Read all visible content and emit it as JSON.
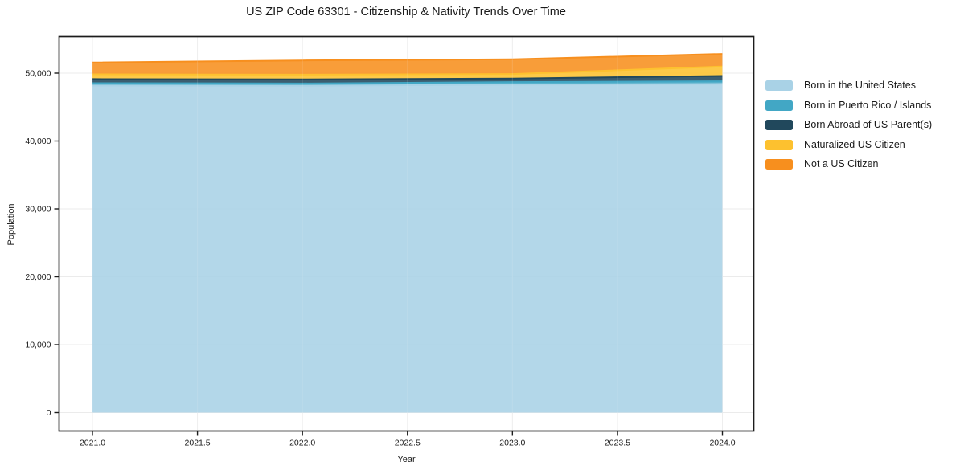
{
  "chart_data": {
    "type": "area",
    "stacked": true,
    "title": "US ZIP Code 63301 - Citizenship & Nativity Trends Over Time",
    "xlabel": "Year",
    "ylabel": "Population",
    "x": [
      2021,
      2022,
      2023,
      2024
    ],
    "series": [
      {
        "name": "Born in the United States",
        "color": "#a9d2e6",
        "values": [
          48170,
          48130,
          48320,
          48410
        ]
      },
      {
        "name": "Born in Puerto Rico / Islands",
        "color": "#42a7c5",
        "values": [
          350,
          350,
          360,
          390
        ]
      },
      {
        "name": "Born Abroad of US Parent(s)",
        "color": "#21485c",
        "values": [
          600,
          600,
          520,
          790
        ]
      },
      {
        "name": "Naturalized US Citizen",
        "color": "#fdc12f",
        "values": [
          700,
          700,
          670,
          1390
        ]
      },
      {
        "name": "Not a US Citizen",
        "color": "#f78f1e",
        "values": [
          1750,
          2090,
          2170,
          1850
        ]
      }
    ],
    "stack_totals": [
      51570,
      51870,
      52040,
      52830
    ],
    "x_ticks": [
      2021.0,
      2021.5,
      2022.0,
      2022.5,
      2023.0,
      2023.5,
      2024.0
    ],
    "x_tick_labels": [
      "2021.0",
      "2021.5",
      "2022.0",
      "2022.5",
      "2023.0",
      "2023.5",
      "2024.0"
    ],
    "y_ticks": [
      0,
      10000,
      20000,
      30000,
      40000,
      50000
    ],
    "y_tick_labels": [
      "0",
      "10,000",
      "20,000",
      "30,000",
      "40,000",
      "50,000"
    ],
    "xlim": [
      2020.84,
      2024.15
    ],
    "ylim": [
      0,
      55400
    ],
    "grid": true,
    "legend_position": "right",
    "grid_color": "#ebebeb",
    "frame_color": "#1c1c1c",
    "text_color": "#1a1a1a"
  }
}
